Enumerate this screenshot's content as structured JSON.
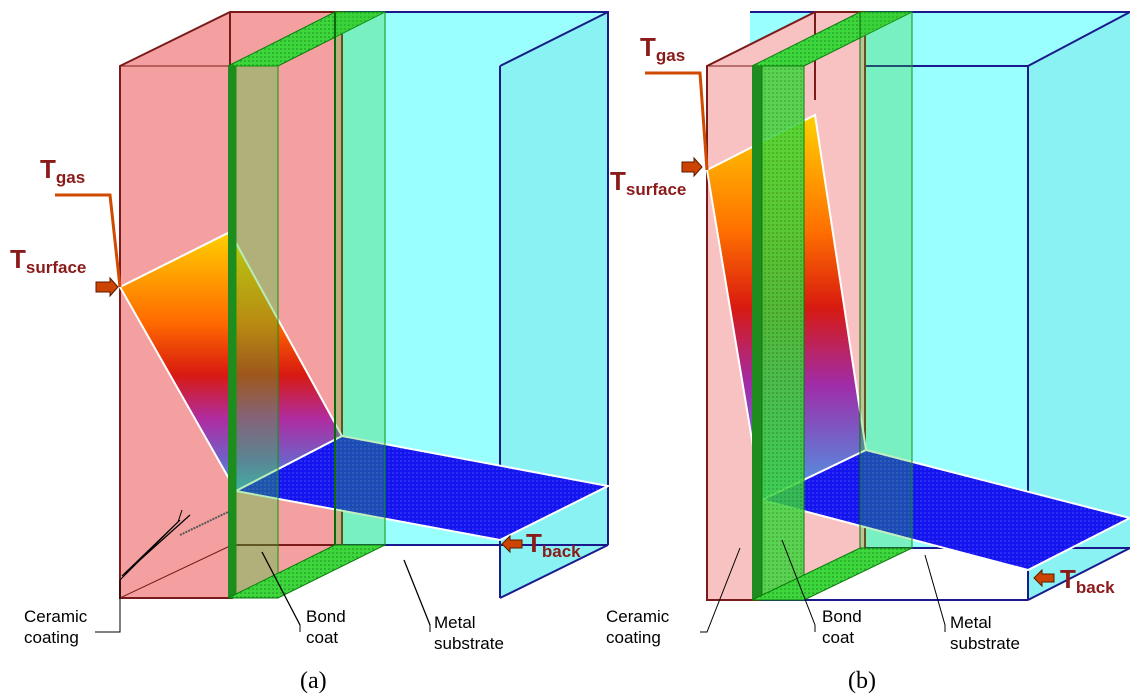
{
  "panels": [
    {
      "caption": "(a)",
      "labels": {
        "t_gas": {
          "main": "T",
          "sub": "gas"
        },
        "t_surface": {
          "main": "T",
          "sub": "surface"
        },
        "t_back": {
          "main": "T",
          "sub": "back"
        },
        "ceramic_line1": "Ceramic",
        "ceramic_line2": "coating",
        "bond_line1": "Bond",
        "bond_line2": "coat",
        "metal_line1": "Metal",
        "metal_line2": "substrate"
      }
    },
    {
      "caption": "(b)",
      "labels": {
        "t_gas": {
          "main": "T",
          "sub": "gas"
        },
        "t_surface": {
          "main": "T",
          "sub": "surface"
        },
        "t_back": {
          "main": "T",
          "sub": "back"
        },
        "ceramic_line1": "Ceramic",
        "ceramic_line2": "coating",
        "bond_line1": "Bond",
        "bond_line2": "coat",
        "metal_line1": "Metal",
        "metal_line2": "substrate"
      }
    }
  ],
  "colors": {
    "ceramic_a": "#f5a0a0",
    "ceramic_b": "#f9c2c2",
    "bond": "#33cc33",
    "metal": "#99ffff",
    "profile_hot": "#ffd200",
    "profile_cold": "#1a1aff",
    "label_red": "#8b1a1a",
    "arrow": "#cc4400"
  }
}
